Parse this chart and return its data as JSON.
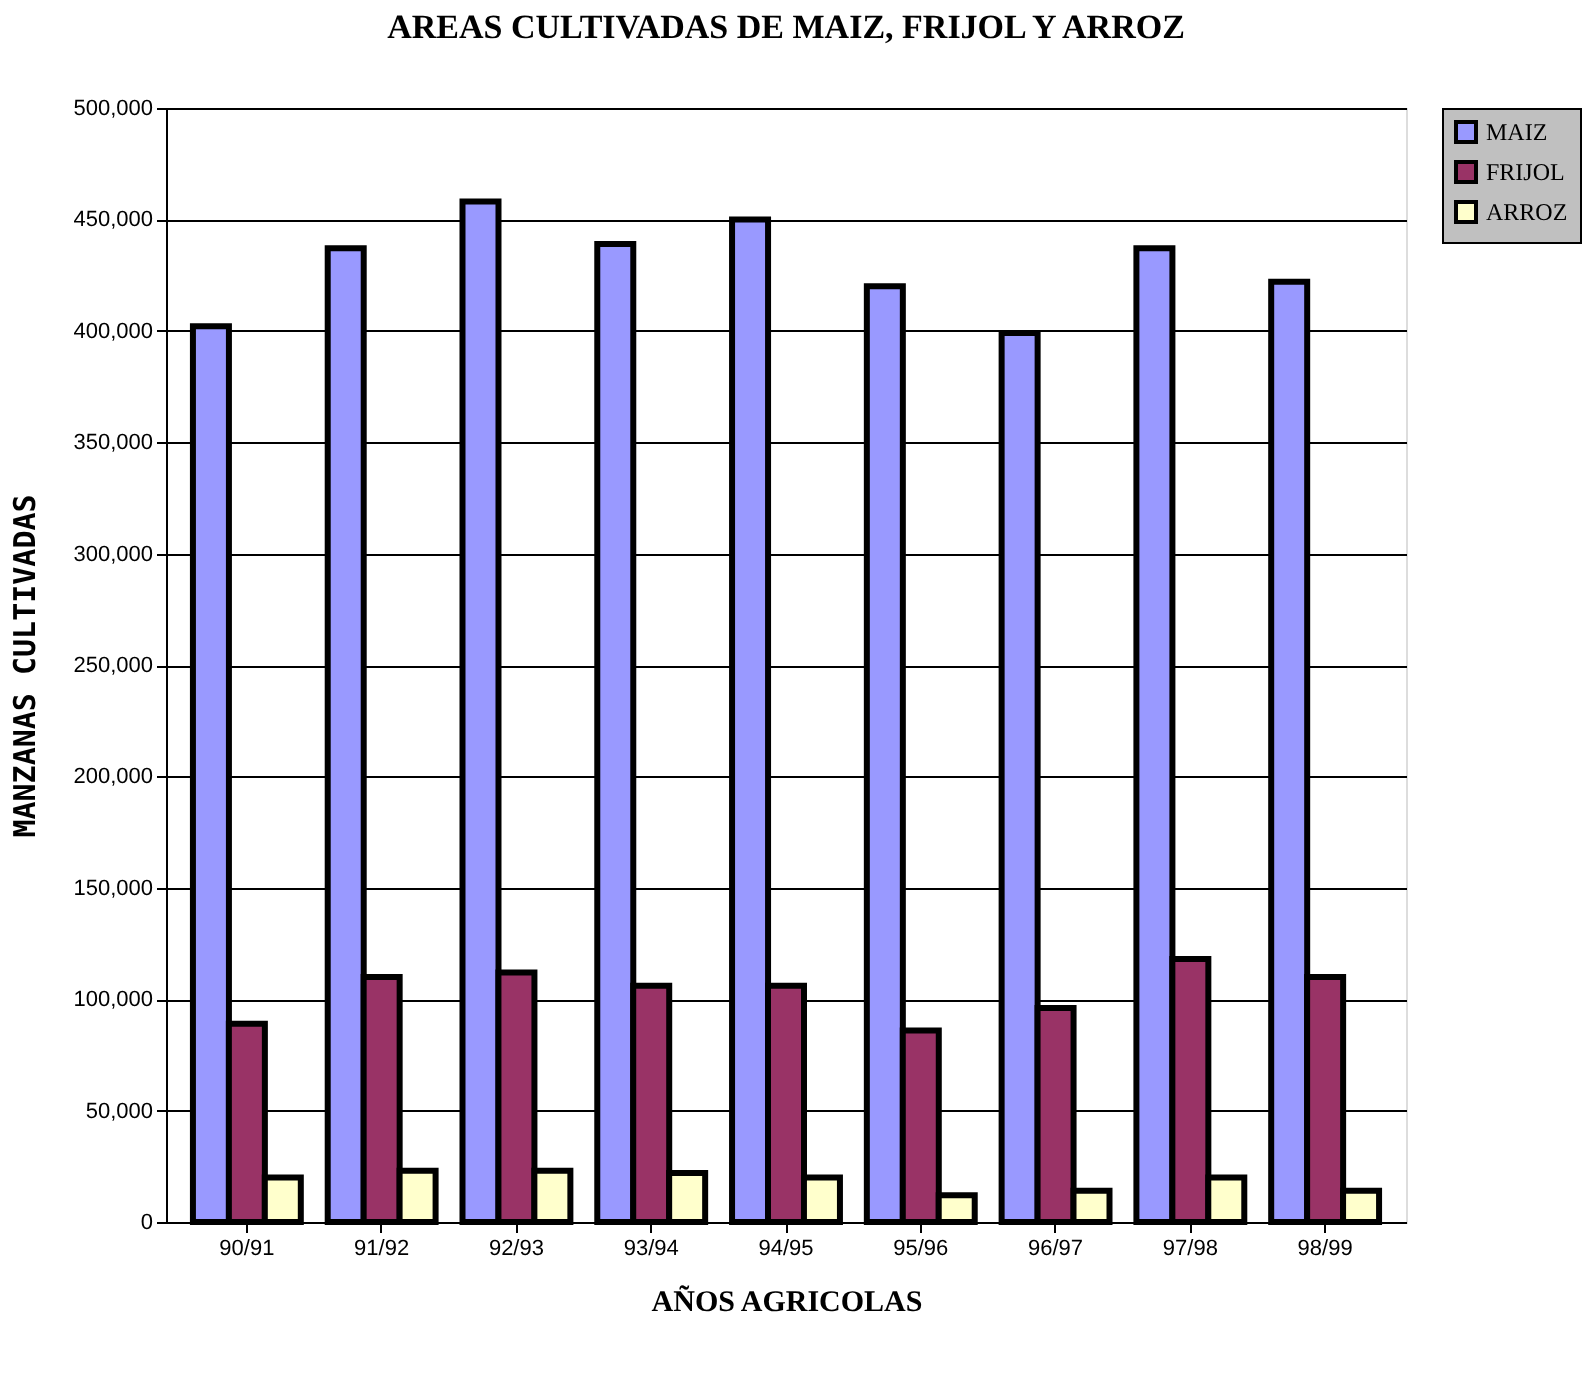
{
  "chart_data": {
    "type": "bar",
    "title": "AREAS CULTIVADAS DE MAIZ, FRIJOL Y ARROZ",
    "xlabel": "AÑOS AGRICOLAS",
    "ylabel": "MANZANAS CULTIVADAS",
    "categories": [
      "90/91",
      "91/92",
      "92/93",
      "93/94",
      "94/95",
      "95/96",
      "96/97",
      "97/98",
      "98/99"
    ],
    "series": [
      {
        "name": "MAIZ",
        "color": "#9999ff",
        "values": [
          402000,
          437000,
          458000,
          439000,
          450000,
          420000,
          399000,
          437000,
          422000
        ]
      },
      {
        "name": "FRIJOL",
        "color": "#993366",
        "values": [
          89000,
          110000,
          112000,
          106000,
          106000,
          86000,
          96000,
          118000,
          110000
        ]
      },
      {
        "name": "ARROZ",
        "color": "#ffffcc",
        "values": [
          20000,
          23000,
          23000,
          22000,
          20000,
          12000,
          14000,
          20000,
          14000
        ]
      }
    ],
    "ylim": [
      0,
      500000
    ],
    "yticks": [
      0,
      {
        "value": 50000,
        "label": "50,000"
      },
      {
        "value": 100000,
        "label": "100,000"
      },
      {
        "value": 150000,
        "label": "150,000"
      },
      {
        "value": 200000,
        "label": "200,000"
      },
      {
        "value": 250000,
        "label": "250,000"
      },
      {
        "value": 300000,
        "label": "300,000"
      },
      {
        "value": 350000,
        "label": "350,000"
      },
      {
        "value": 400000,
        "label": "400,000"
      },
      {
        "value": 450000,
        "label": "450,000"
      },
      {
        "value": 500000,
        "label": "500,000"
      }
    ],
    "grid": "y",
    "legend": "top right"
  }
}
